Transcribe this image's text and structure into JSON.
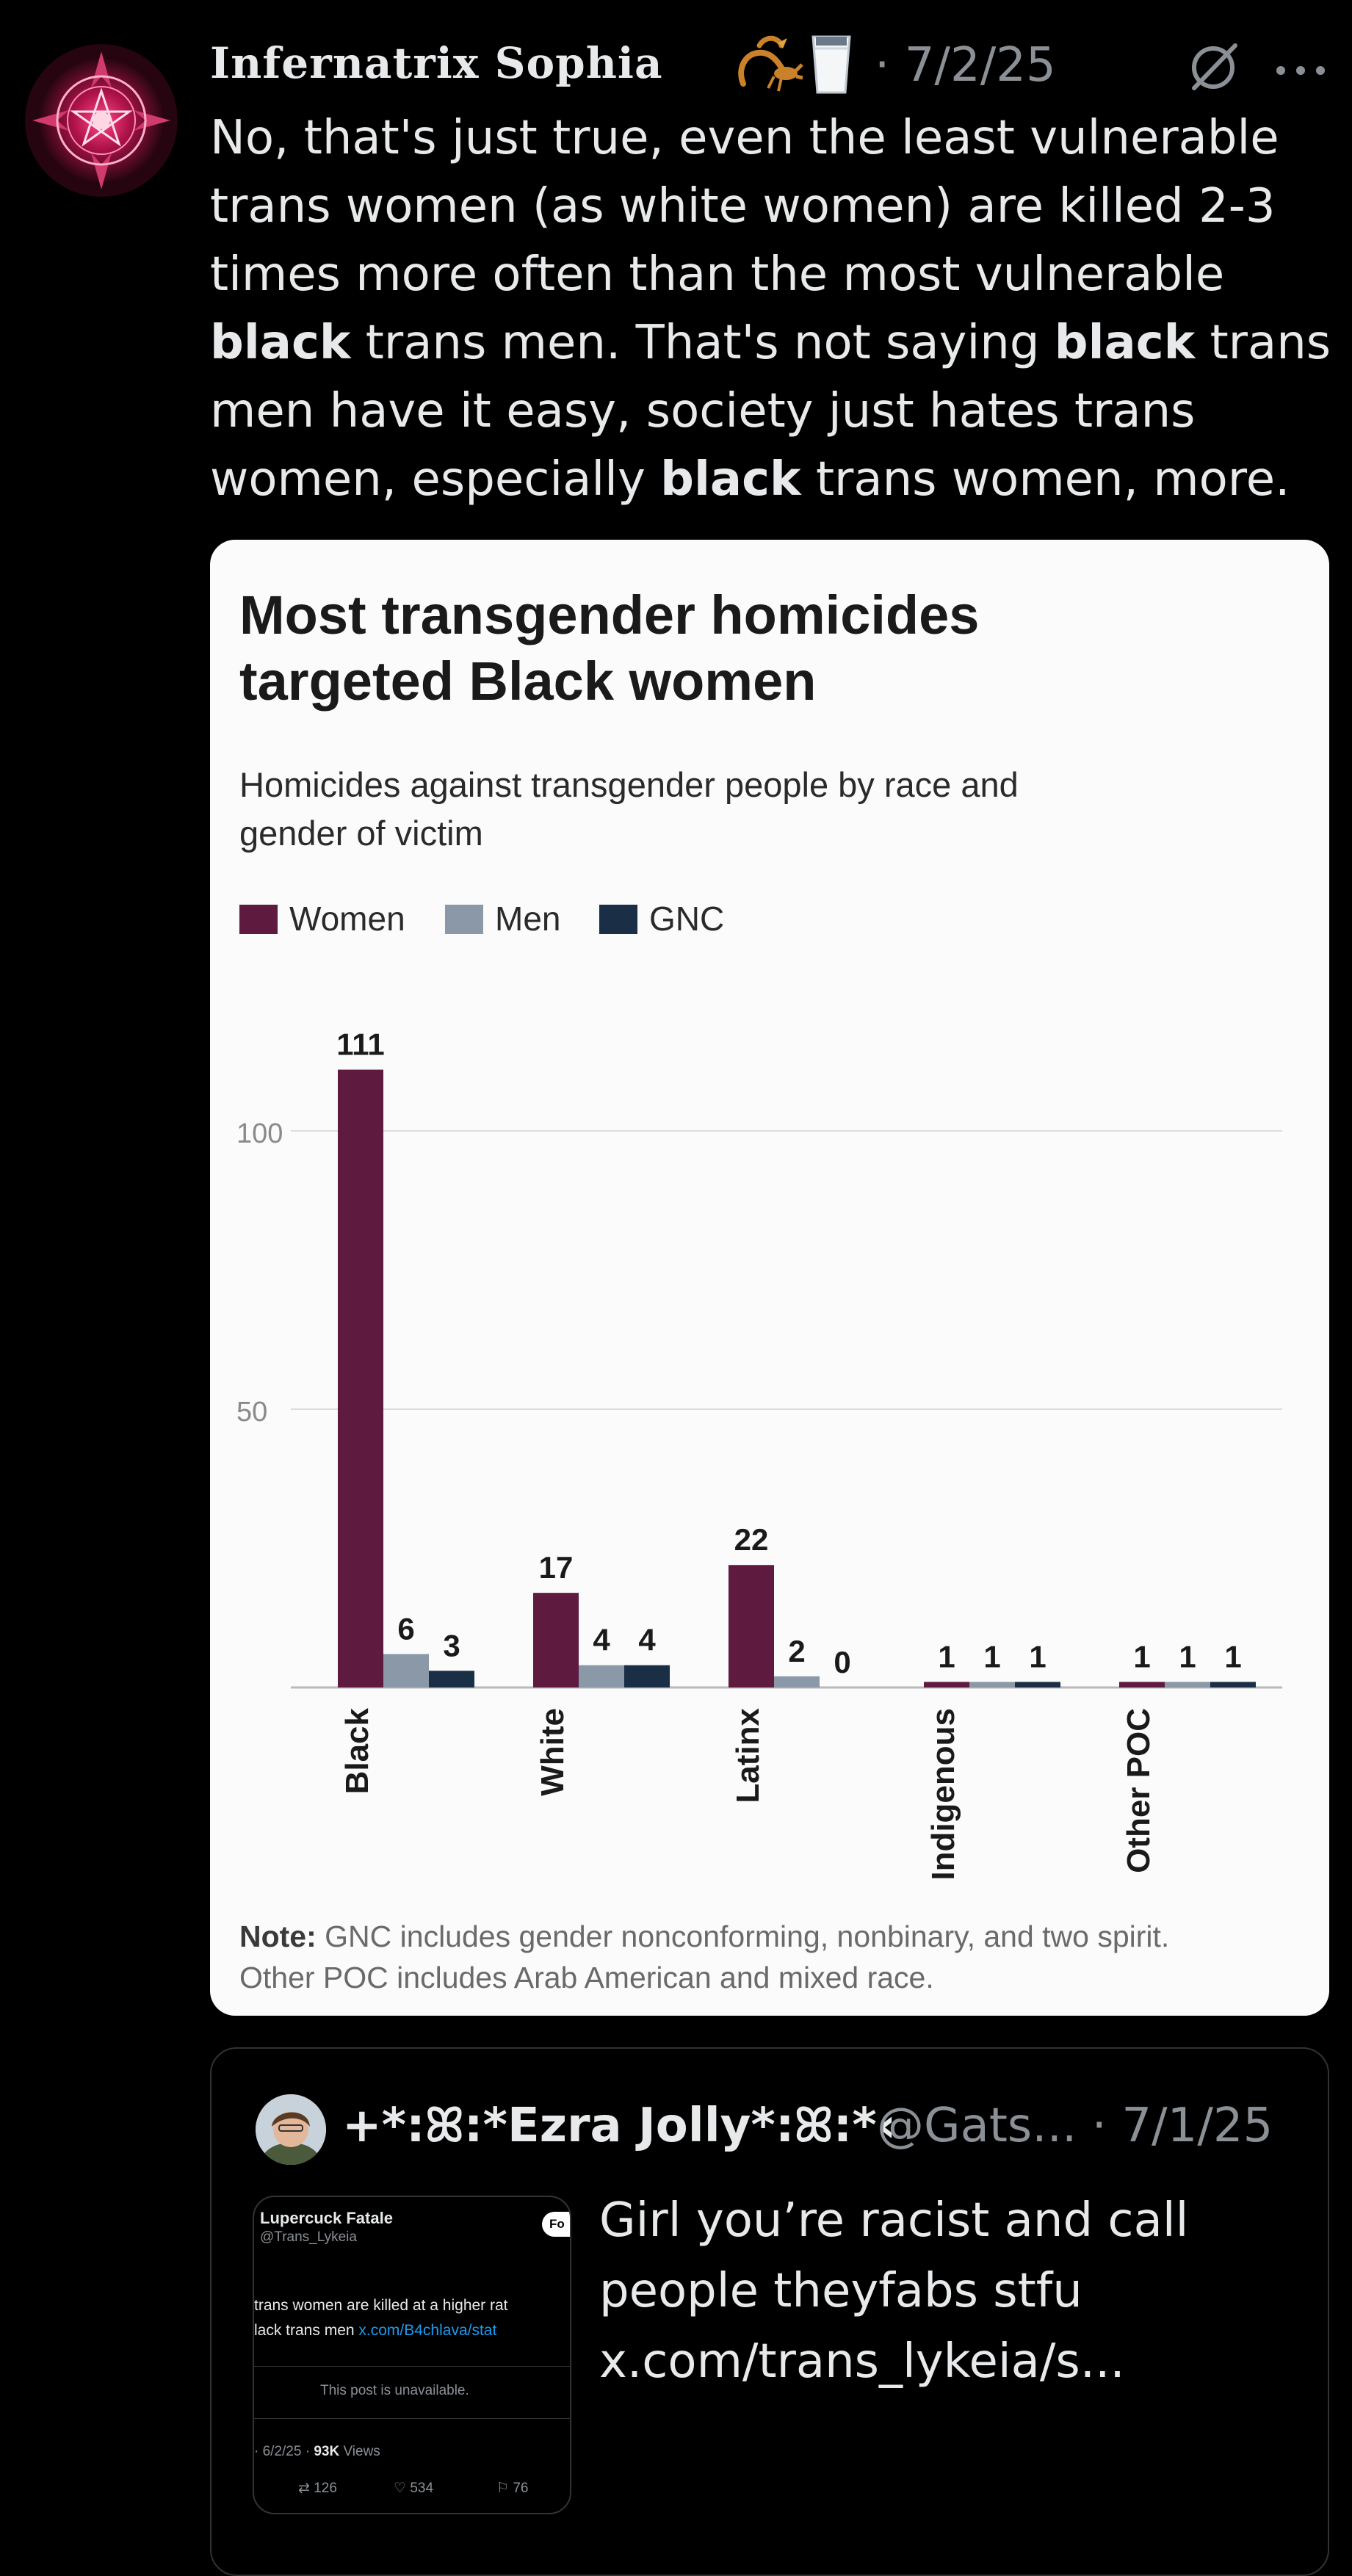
{
  "post": {
    "display_name": "Infernatrix Sophia",
    "name_emojis": [
      "scorpion-emoji",
      "milk-glass-emoji"
    ],
    "date": "· 7/2/25",
    "text_parts": [
      {
        "t": "No, that's just true, even the least vulnerable trans women (as white women) are killed 2-3 times more often than the most vulnerable ",
        "b": false
      },
      {
        "t": "black",
        "b": true
      },
      {
        "t": " trans men. That's not saying ",
        "b": false
      },
      {
        "t": "black",
        "b": true
      },
      {
        "t": " trans men have it easy, society just hates trans women, especially ",
        "b": false
      },
      {
        "t": "black",
        "b": true
      },
      {
        "t": " trans women, more.",
        "b": false
      }
    ]
  },
  "chart_data": {
    "type": "bar",
    "title_line1": "Most transgender homicides",
    "title_line2": "targeted Black women",
    "subtitle_line1": "Homicides against transgender people by race and",
    "subtitle_line2": "gender of victim",
    "categories": [
      "Black",
      "White",
      "Latinx",
      "Indigenous",
      "Other POC"
    ],
    "series": [
      {
        "name": "Women",
        "color": "#5e1a3f",
        "values": [
          111,
          17,
          22,
          1,
          1
        ]
      },
      {
        "name": "Men",
        "color": "#8a98a8",
        "values": [
          6,
          4,
          2,
          1,
          1
        ]
      },
      {
        "name": "GNC",
        "color": "#1a2e45",
        "values": [
          3,
          4,
          0,
          1,
          1
        ]
      }
    ],
    "yticks": [
      50,
      100
    ],
    "ylim": [
      0,
      111
    ],
    "grid": true,
    "legend_position": "top-left",
    "note_label": "Note:",
    "note_line1": " GNC includes gender nonconforming, nonbinary, and two spirit.",
    "note_line2": "Other POC includes Arab American and mixed race."
  },
  "quote": {
    "name": "+*:ꕤ:*Ezra Jolly*:ꕤ:*‹",
    "handle_date": "@Gats... · 7/1/25",
    "text": "Girl you’re racist and call people theyfabs stfu x.com/trans_lykeia/s...",
    "thumb": {
      "name": "Lupercuck Fatale",
      "handle": "@Trans_Lykeia",
      "follow": "Fo",
      "line1": "trans women are killed at a higher rat",
      "line2_text": "lack trans men ",
      "line2_link": "x.com/B4chlava/stat",
      "unavailable": "This post is unavailable.",
      "date": "· 6/2/25 · ",
      "views_count": "93K",
      "views_label": " Views",
      "retweets": "126",
      "likes": "534",
      "bookmarks": "76"
    }
  }
}
